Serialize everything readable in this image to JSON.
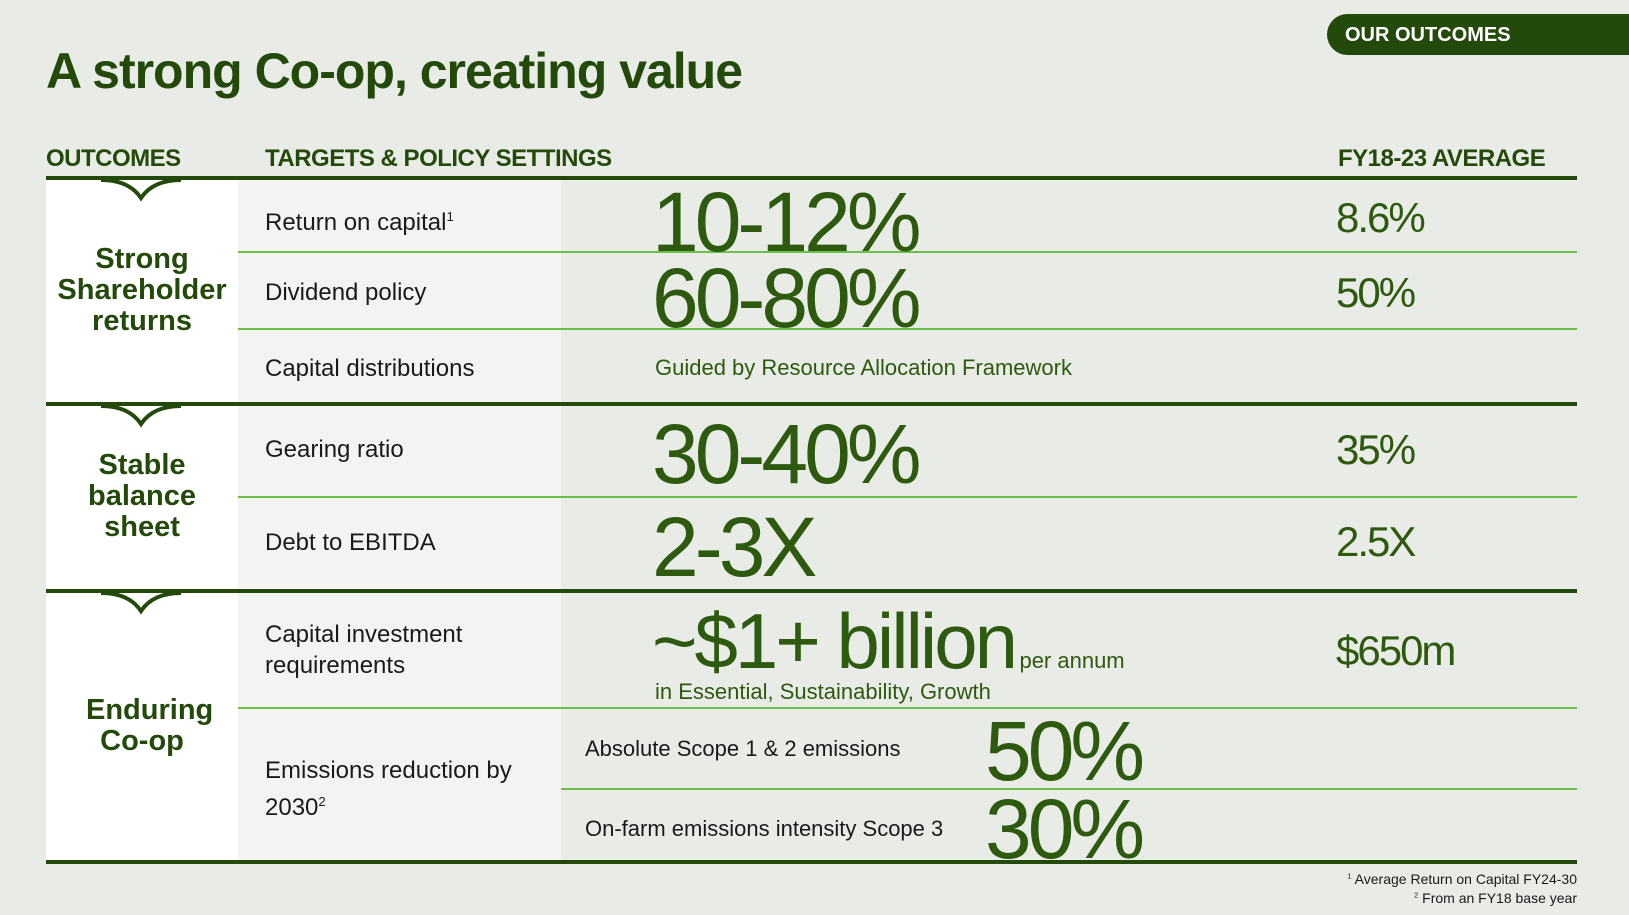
{
  "title": "A strong Co-op, creating value",
  "badge": "OUR OUTCOMES",
  "headers": {
    "outcomes": "OUTCOMES",
    "targets": "TARGETS & POLICY SETTINGS",
    "average": "FY18-23 AVERAGE"
  },
  "sections": [
    {
      "outcome": "Strong Shareholder returns",
      "rows": [
        {
          "label": "Return on capital",
          "sup": "1",
          "target": "10-12%",
          "average": "8.6%"
        },
        {
          "label": "Dividend policy",
          "target": "60-80%",
          "average": "50%"
        },
        {
          "label": "Capital distributions",
          "target_note": "Guided by Resource Allocation Framework"
        }
      ]
    },
    {
      "outcome": "Stable balance sheet",
      "rows": [
        {
          "label": "Gearing ratio",
          "target": "30-40%",
          "average": "35%"
        },
        {
          "label": "Debt to EBITDA",
          "target": "2-3X",
          "average": "2.5X"
        }
      ]
    },
    {
      "outcome": "Enduring Co-op",
      "rows": [
        {
          "label": "Capital investment requirements",
          "target": "~$1+ billion",
          "target_suffix": "per annum",
          "target_note": "in Essential, Sustainability, Growth",
          "average": "$650m"
        },
        {
          "label": "Emissions reduction by 2030",
          "sup": "2",
          "subrows": [
            {
              "label": "Absolute Scope 1 & 2 emissions",
              "target": "50%"
            },
            {
              "label": "On-farm emissions intensity Scope 3",
              "target": "30%"
            }
          ]
        }
      ]
    }
  ],
  "footnotes": [
    "1",
    "Average Return on Capital FY24-30",
    "2",
    "From an FY18 base year"
  ],
  "colors": {
    "dark_green": "#234a0a",
    "light_green": "#6cc04a",
    "background": "#e9ebe6"
  }
}
